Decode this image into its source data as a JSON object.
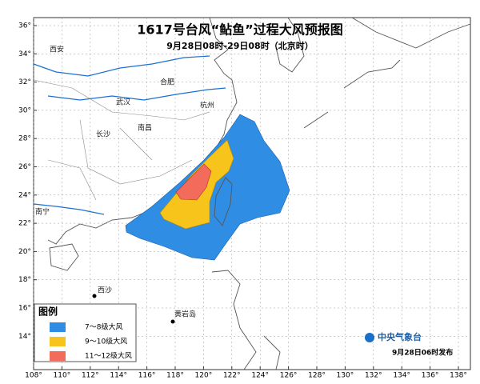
{
  "header": {
    "title": "1617号台风“鲇鱼”过程大风预报图",
    "subtitle": "9月28日08时-29日08时（北京时）"
  },
  "lat_ticks": [
    {
      "value": 14,
      "label": "14°"
    },
    {
      "value": 16,
      "label": "16°"
    },
    {
      "value": 18,
      "label": "18°"
    },
    {
      "value": 20,
      "label": "20°"
    },
    {
      "value": 22,
      "label": "22°"
    },
    {
      "value": 24,
      "label": "24°"
    },
    {
      "value": 26,
      "label": "26°"
    },
    {
      "value": 28,
      "label": "28°"
    },
    {
      "value": 30,
      "label": "30°"
    },
    {
      "value": 32,
      "label": "32°"
    },
    {
      "value": 34,
      "label": "34°"
    },
    {
      "value": 36,
      "label": "36°"
    }
  ],
  "lon_ticks": [
    {
      "value": 108,
      "label": "108°"
    },
    {
      "value": 110,
      "label": "110°"
    },
    {
      "value": 112,
      "label": "112°"
    },
    {
      "value": 114,
      "label": "114°"
    },
    {
      "value": 116,
      "label": "116°"
    },
    {
      "value": 118,
      "label": "118°"
    },
    {
      "value": 120,
      "label": "120°"
    },
    {
      "value": 122,
      "label": "122°"
    },
    {
      "value": 124,
      "label": "124°"
    },
    {
      "value": 126,
      "label": "126°"
    },
    {
      "value": 128,
      "label": "128°"
    },
    {
      "value": 130,
      "label": "130°"
    },
    {
      "value": 132,
      "label": "132°"
    },
    {
      "value": 134,
      "label": "134°"
    },
    {
      "value": 136,
      "label": "136°"
    },
    {
      "value": 138,
      "label": "138°"
    }
  ],
  "cities": [
    "西安",
    "合肥",
    "武汉",
    "杭州",
    "长沙",
    "南昌",
    "南宁",
    "西沙",
    "黄岩岛"
  ],
  "legend": {
    "title": "图例",
    "items": [
      "7～8级大风",
      "9～10级大风",
      "11～12级大风"
    ]
  },
  "footer": {
    "issuer": "中央气象台",
    "issued": "9月28日06时发布"
  }
}
